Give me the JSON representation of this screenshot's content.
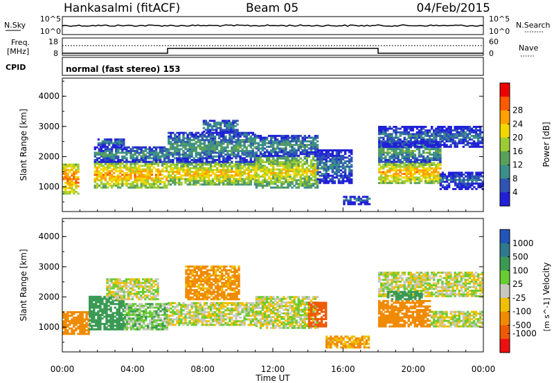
{
  "header": {
    "station": "Hankasalmi (fitACF)",
    "beam": "Beam 05",
    "date": "04/Feb/2015"
  },
  "noise_panel": {
    "left_label": "N.Sky",
    "right_label": "N.Search",
    "tick_top": "10^5",
    "tick_bottom": "10^0"
  },
  "freq_panel": {
    "left_label_1": "Freq.",
    "left_label_2": "[MHz]",
    "left_ticks": [
      "18",
      "8"
    ],
    "right_ticks": [
      "60",
      "0"
    ],
    "right_label": "Nave"
  },
  "cpid": {
    "label": "CPID",
    "value": "normal (fast stereo) 153"
  },
  "colors": {
    "power_scale": [
      "#2020d8",
      "#2f55b4",
      "#3b8f8a",
      "#5aa05a",
      "#9ccc33",
      "#f0d800",
      "#ffa000",
      "#ff5a00",
      "#ee0000"
    ],
    "velocity_scale": [
      "#2255bb",
      "#2f7a8e",
      "#3a9a55",
      "#6acc33",
      "#c8c8c0",
      "#f0c000",
      "#f08a00",
      "#f05a00",
      "#ee1010"
    ]
  },
  "chart_data": [
    {
      "type": "heatmap",
      "quantity": "power",
      "xlabel": "Time UT",
      "ylabel": "Slant Range [km]",
      "xlim": [
        0,
        24
      ],
      "ylim": [
        180,
        4600
      ],
      "yticks": [
        "1000",
        "2000",
        "3000",
        "4000"
      ],
      "x_ticks": [
        "00:00",
        "04:00",
        "08:00",
        "12:00",
        "16:00",
        "20:00",
        "00:00"
      ],
      "colorbar": {
        "label": "Power [dB]",
        "ticks": [
          "4",
          "8",
          "12",
          "16",
          "20",
          "24",
          "28"
        ]
      },
      "regions": [
        {
          "t0": 0.0,
          "t1": 0.9,
          "r0": 750,
          "r1": 1750,
          "v": 28
        },
        {
          "t0": 1.8,
          "t1": 6.0,
          "r0": 950,
          "r1": 1800,
          "v": 26
        },
        {
          "t0": 1.8,
          "t1": 6.0,
          "r0": 1800,
          "r1": 2300,
          "v": 12
        },
        {
          "t0": 2.0,
          "t1": 3.5,
          "r0": 2300,
          "r1": 2600,
          "v": 10
        },
        {
          "t0": 6.0,
          "t1": 11.0,
          "r0": 1050,
          "r1": 1800,
          "v": 24
        },
        {
          "t0": 6.0,
          "t1": 11.0,
          "r0": 1800,
          "r1": 2800,
          "v": 13
        },
        {
          "t0": 8.0,
          "t1": 10.0,
          "r0": 2800,
          "r1": 3200,
          "v": 12
        },
        {
          "t0": 11.0,
          "t1": 14.5,
          "r0": 950,
          "r1": 2000,
          "v": 22
        },
        {
          "t0": 11.0,
          "t1": 14.5,
          "r0": 2000,
          "r1": 2700,
          "v": 12
        },
        {
          "t0": 14.5,
          "t1": 16.5,
          "r0": 1100,
          "r1": 2200,
          "v": 10
        },
        {
          "t0": 16.0,
          "t1": 17.5,
          "r0": 400,
          "r1": 700,
          "v": 8
        },
        {
          "t0": 18.0,
          "t1": 21.5,
          "r0": 1100,
          "r1": 1800,
          "v": 26
        },
        {
          "t0": 18.0,
          "t1": 21.5,
          "r0": 1800,
          "r1": 2500,
          "v": 14
        },
        {
          "t0": 18.0,
          "t1": 24.0,
          "r0": 2300,
          "r1": 3000,
          "v": 9
        },
        {
          "t0": 21.5,
          "t1": 24.0,
          "r0": 900,
          "r1": 1500,
          "v": 8
        }
      ]
    },
    {
      "type": "heatmap",
      "quantity": "velocity",
      "xlabel": "Time UT",
      "ylabel": "Slant Range [km]",
      "xlim": [
        0,
        24
      ],
      "ylim": [
        180,
        4600
      ],
      "yticks": [
        "1000",
        "2000",
        "3000",
        "4000"
      ],
      "x_ticks": [
        "00:00",
        "04:00",
        "08:00",
        "12:00",
        "16:00",
        "20:00",
        "00:00"
      ],
      "colorbar": {
        "label": "Velocity",
        "unit": "[m s^-1]",
        "ticks": [
          "1000",
          "500",
          "100",
          "25",
          "-25",
          "-100",
          "-500",
          "-1000"
        ]
      },
      "regions": [
        {
          "t0": 0.0,
          "t1": 1.5,
          "r0": 750,
          "r1": 1500,
          "v": -200
        },
        {
          "t0": 1.5,
          "t1": 3.5,
          "r0": 900,
          "r1": 2000,
          "v": 300
        },
        {
          "t0": 3.5,
          "t1": 6.0,
          "r0": 900,
          "r1": 1800,
          "v": 60
        },
        {
          "t0": 2.5,
          "t1": 5.5,
          "r0": 1900,
          "r1": 2600,
          "v": 0
        },
        {
          "t0": 6.0,
          "t1": 11.0,
          "r0": 1050,
          "r1": 1800,
          "v": 0
        },
        {
          "t0": 7.0,
          "t1": 10.0,
          "r0": 1900,
          "r1": 3000,
          "v": -150
        },
        {
          "t0": 11.0,
          "t1": 14.5,
          "r0": 950,
          "r1": 2000,
          "v": 0
        },
        {
          "t0": 14.0,
          "t1": 15.0,
          "r0": 1000,
          "r1": 1800,
          "v": -600
        },
        {
          "t0": 15.0,
          "t1": 17.5,
          "r0": 300,
          "r1": 700,
          "v": -100
        },
        {
          "t0": 18.0,
          "t1": 21.0,
          "r0": 1000,
          "r1": 1900,
          "v": -300
        },
        {
          "t0": 18.0,
          "t1": 24.0,
          "r0": 2000,
          "r1": 2800,
          "v": 0
        },
        {
          "t0": 21.0,
          "t1": 24.0,
          "r0": 1000,
          "r1": 1500,
          "v": 0
        },
        {
          "t0": 18.5,
          "t1": 20.5,
          "r0": 1900,
          "r1": 2200,
          "v": 200
        }
      ]
    }
  ]
}
